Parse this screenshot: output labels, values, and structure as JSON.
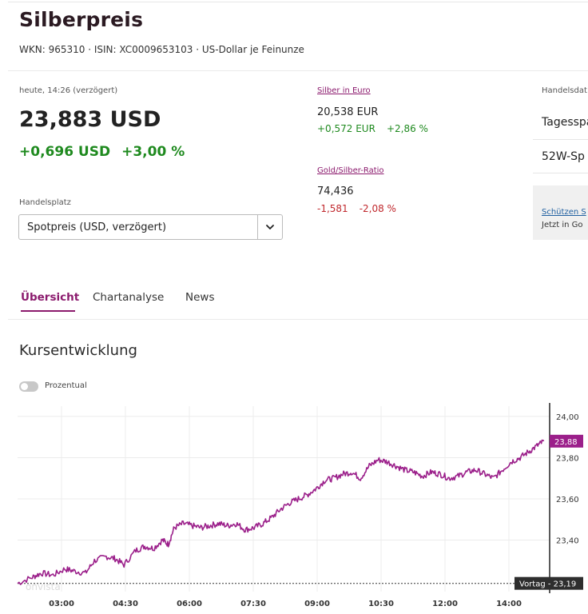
{
  "header": {
    "title": "Silberpreis",
    "subtitle": "WKN: 965310 · ISIN: XC0009653103 · US-Dollar je Feinunze"
  },
  "quote": {
    "date_label": "heute, 14:26 (verzögert)",
    "price": "23,883 USD",
    "change_abs": "+0,696 USD",
    "change_pct": "+3,00 %"
  },
  "handelsplatz": {
    "label": "Handelsplatz",
    "selected": "Spotpreis (USD, verzögert)"
  },
  "silber_euro": {
    "link": "Silber in Euro",
    "value": "20,538 EUR",
    "change_abs": "+0,572 EUR",
    "change_pct": "+2,86 %"
  },
  "ratio": {
    "link": "Gold/Silber-Ratio",
    "value": "74,436",
    "change_abs": "-1,581",
    "change_pct": "-2,08 %"
  },
  "side": {
    "handelsdaten_label": "Handelsdat",
    "tages_label": "Tagesspa",
    "w52_label": "52W-Sp",
    "promo_link": "Schützen S",
    "promo_text": "Jetzt in Go"
  },
  "tabs": [
    "Übersicht",
    "Chartanalyse",
    "News"
  ],
  "section": {
    "title": "Kursentwicklung",
    "toggle_label": "Prozentual"
  },
  "colors": {
    "accent": "#8b1a6d",
    "line": "#9b1f8a",
    "positive": "#1f8a1f",
    "negative": "#c0282d"
  },
  "chart_data": {
    "type": "line",
    "series": [
      {
        "values": [
          [
            0.0,
            23.19
          ],
          [
            0.5,
            23.22
          ],
          [
            0.8,
            23.24
          ],
          [
            1.2,
            23.23
          ],
          [
            1.6,
            23.26
          ],
          [
            1.9,
            23.25
          ],
          [
            2.3,
            23.24
          ],
          [
            2.6,
            23.3
          ],
          [
            3.0,
            23.32
          ],
          [
            3.3,
            23.31
          ],
          [
            3.6,
            23.28
          ],
          [
            4.0,
            23.35
          ],
          [
            4.3,
            23.37
          ],
          [
            4.6,
            23.36
          ],
          [
            4.9,
            23.4
          ],
          [
            5.1,
            23.38
          ],
          [
            5.3,
            23.46
          ],
          [
            5.6,
            23.48
          ],
          [
            5.9,
            23.47
          ],
          [
            6.2,
            23.46
          ],
          [
            6.5,
            23.47
          ],
          [
            6.8,
            23.48
          ],
          [
            7.1,
            23.47
          ],
          [
            7.4,
            23.48
          ],
          [
            7.7,
            23.45
          ],
          [
            8.0,
            23.46
          ],
          [
            8.3,
            23.48
          ],
          [
            8.6,
            23.51
          ],
          [
            8.9,
            23.55
          ],
          [
            9.2,
            23.58
          ],
          [
            9.5,
            23.6
          ],
          [
            9.8,
            23.62
          ],
          [
            10.1,
            23.65
          ],
          [
            10.4,
            23.69
          ],
          [
            10.7,
            23.7
          ],
          [
            11.0,
            23.72
          ],
          [
            11.3,
            23.73
          ],
          [
            11.6,
            23.7
          ],
          [
            11.9,
            23.76
          ],
          [
            12.2,
            23.79
          ],
          [
            12.5,
            23.78
          ],
          [
            12.8,
            23.76
          ],
          [
            13.1,
            23.74
          ],
          [
            13.4,
            23.73
          ],
          [
            13.7,
            23.71
          ],
          [
            14.0,
            23.73
          ],
          [
            14.3,
            23.72
          ],
          [
            14.6,
            23.7
          ],
          [
            14.9,
            23.71
          ],
          [
            15.2,
            23.73
          ],
          [
            15.5,
            23.74
          ],
          [
            15.8,
            23.72
          ],
          [
            16.1,
            23.7
          ],
          [
            16.4,
            23.74
          ],
          [
            16.7,
            23.78
          ],
          [
            17.0,
            23.8
          ],
          [
            17.3,
            23.83
          ],
          [
            17.6,
            23.86
          ],
          [
            17.8,
            23.88
          ]
        ]
      }
    ],
    "x_ticks": [
      "03:00",
      "04:30",
      "06:00",
      "07:30",
      "09:00",
      "10:30",
      "12:00",
      "14:00"
    ],
    "y_ticks": [
      "24,00",
      "23,80",
      "23,60",
      "23,40"
    ],
    "ylim": [
      23.15,
      24.05
    ],
    "current_label": "23,88",
    "vortag_label": "Vortag - 23,19",
    "vortag_value": 23.19,
    "watermark": "onvista"
  }
}
